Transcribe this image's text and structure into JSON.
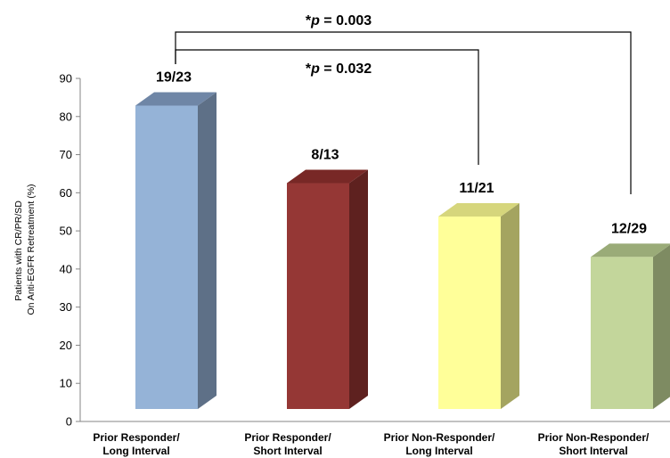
{
  "chart_data": {
    "type": "bar",
    "ylabel": [
      "Patients with CR/PR/SD",
      "On Anti-EGFR Retreatment  (%)"
    ],
    "ylim": [
      0,
      90
    ],
    "yticks": [
      0,
      10,
      20,
      30,
      40,
      50,
      60,
      70,
      80,
      90
    ],
    "grid": false,
    "legend": "none",
    "categories": [
      [
        "Prior Responder/",
        "Long Interval"
      ],
      [
        "Prior Responder/",
        "Short Interval"
      ],
      [
        "Prior Non-Responder/",
        "Long Interval"
      ],
      [
        "Prior Non-Responder/",
        "Short Interval"
      ]
    ],
    "values": [
      82.6,
      61.5,
      52.4,
      41.4
    ],
    "data_labels": [
      "19/23",
      "8/13",
      "11/21",
      "12/29"
    ],
    "colors": {
      "front": [
        "#95B3D7",
        "#953735",
        "#FFFF99",
        "#C3D69B"
      ],
      "side": [
        "#5E7087",
        "#5E211F",
        "#A4A460",
        "#7E8B62"
      ],
      "top": [
        "#6F86A6",
        "#782826",
        "#D6D67C",
        "#9AAB78"
      ],
      "axis": "#868686"
    },
    "annotations": [
      {
        "from": 0,
        "to": 3,
        "prefix": "*",
        "italic": "p",
        "rest": " = 0.003"
      },
      {
        "from": 0,
        "to": 2,
        "prefix": "*",
        "italic": "p",
        "rest": " = 0.032"
      }
    ]
  }
}
